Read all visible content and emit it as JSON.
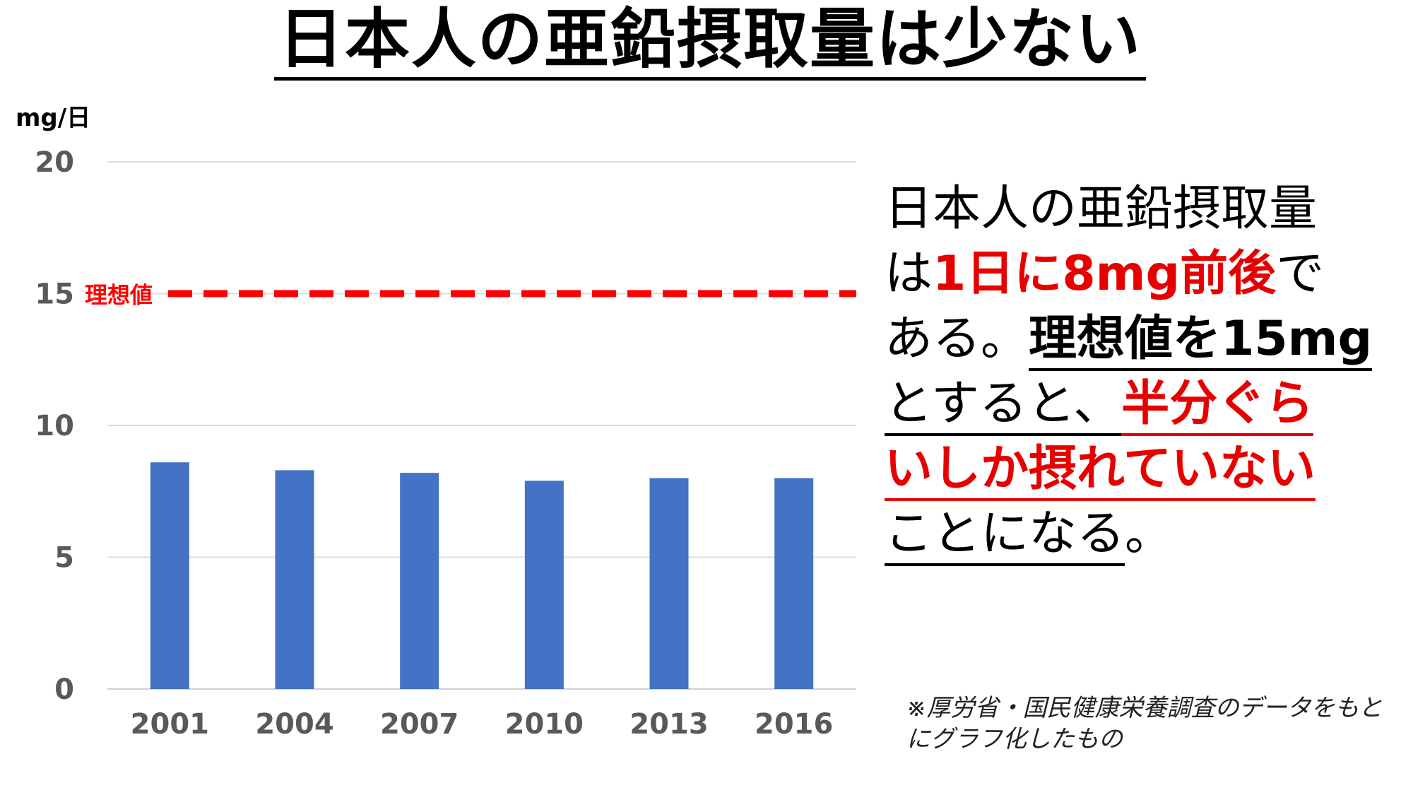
{
  "page": {
    "title": "日本人の亜鉛摂取量は少ない",
    "body": {
      "l1": "日本人の亜鉛摂取量",
      "l2a": "は",
      "l2b": "1日に8mg前後",
      "l2c": "で",
      "l3a": "ある。",
      "l3b": "理想値を15mg",
      "l4a": "とすると、",
      "l4b": "半分ぐら",
      "l5": "いしか摂れていない",
      "l6a": "ことになる",
      "l6b": "。"
    },
    "note": "※厚労省・国民健康栄養調査のデータをもとにグラフ化したもの"
  },
  "chart_data": {
    "type": "bar",
    "unit_label": "mg/日",
    "categories": [
      "2001",
      "2004",
      "2007",
      "2010",
      "2013",
      "2016"
    ],
    "values": [
      8.6,
      8.3,
      8.2,
      7.9,
      8.0,
      8.0
    ],
    "ylim": [
      0,
      20
    ],
    "yticks": [
      0,
      5,
      10,
      15,
      20
    ],
    "grid": true,
    "reference_line": {
      "value": 15,
      "label": "理想値",
      "color": "#ff0000",
      "style": "dashed"
    },
    "bar_color": "#4472c4"
  }
}
